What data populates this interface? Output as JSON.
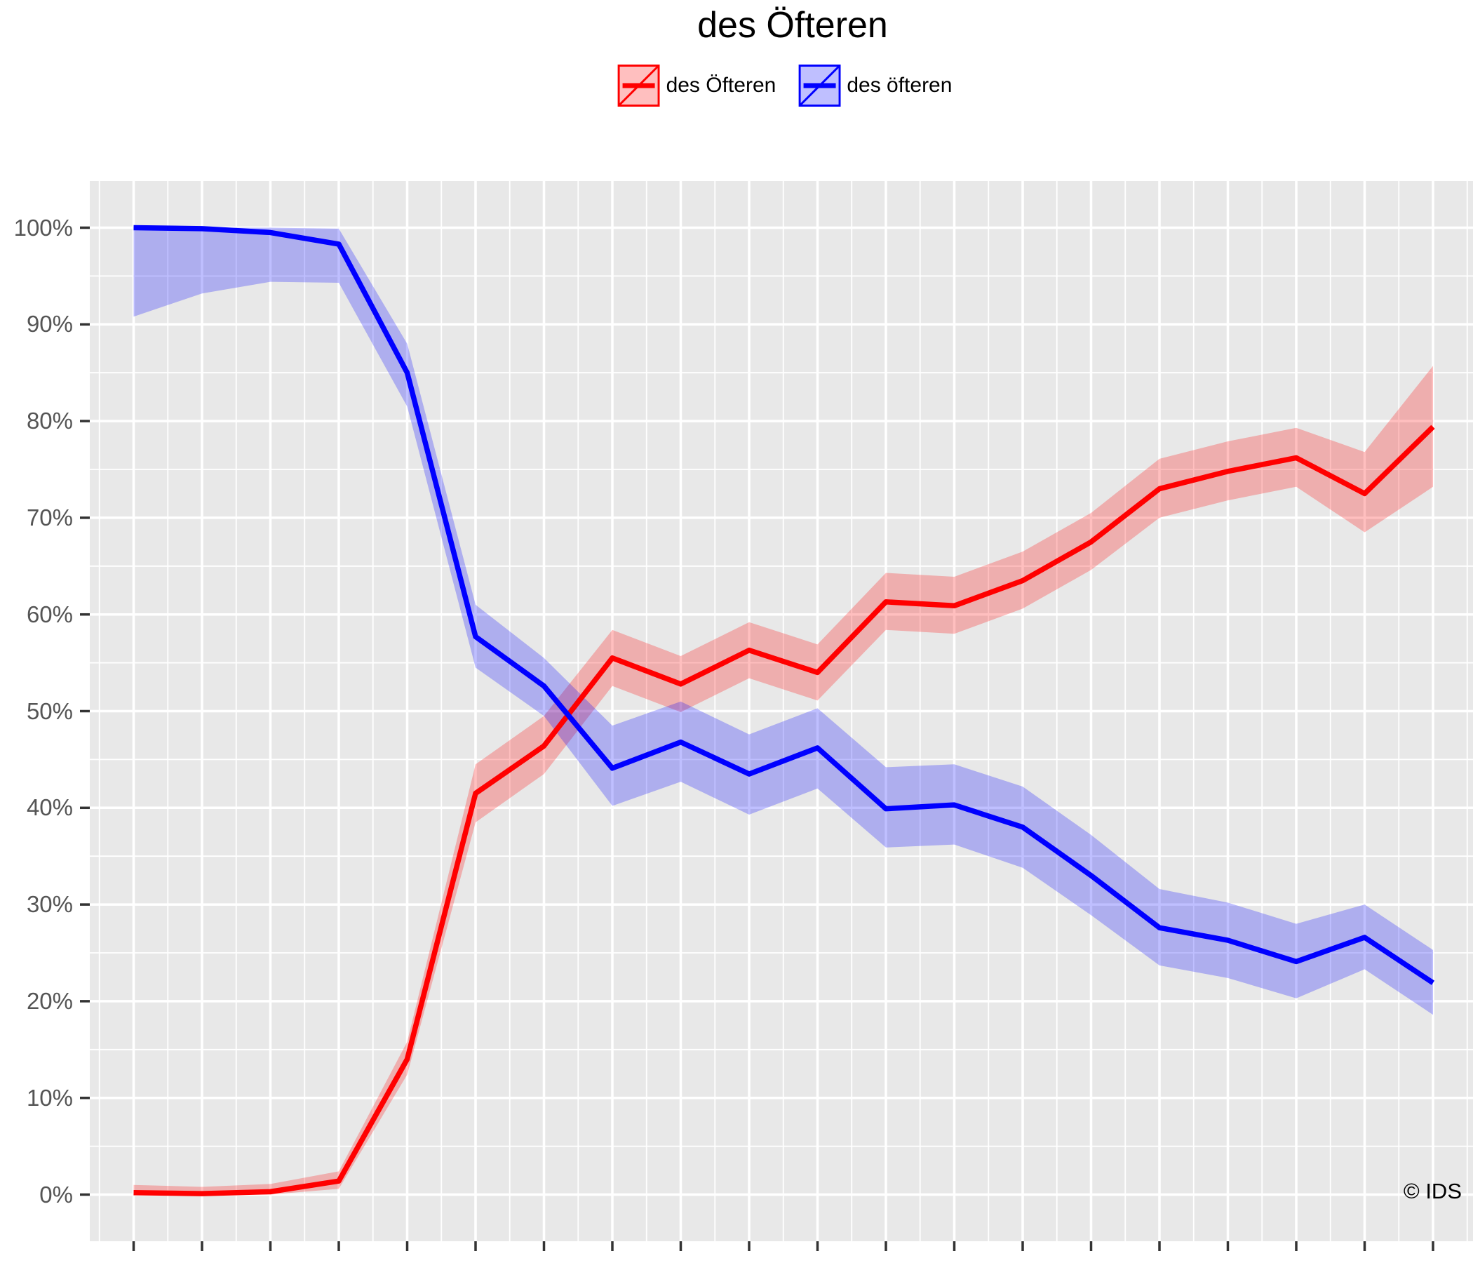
{
  "title": "des Öfteren",
  "watermark": "© IDS",
  "colors": {
    "red": "#FF0000",
    "blue": "#0000FF",
    "red_fill": "rgba(255,0,0,0.25)",
    "blue_fill": "rgba(0,0,255,0.25)",
    "panel_bg": "#E8E8E8",
    "grid": "#FFFFFF",
    "axis_text": "#555555",
    "tick": "#333333"
  },
  "legend": {
    "items": [
      {
        "label": "des Öfteren",
        "color": "#FF0000",
        "fill": "rgba(255,0,0,0.25)"
      },
      {
        "label": "des öfteren",
        "color": "#0000FF",
        "fill": "rgba(0,0,255,0.25)"
      }
    ]
  },
  "y_axis": {
    "tick_labels": [
      "0%",
      "10%",
      "20%",
      "30%",
      "40%",
      "50%",
      "60%",
      "70%",
      "80%",
      "90%",
      "100%"
    ]
  },
  "x_axis": {
    "tick_count": 20,
    "tick_labels": []
  },
  "chart_data": {
    "type": "line",
    "title": "des Öfteren",
    "x": [
      1,
      2,
      3,
      4,
      5,
      6,
      7,
      8,
      9,
      10,
      11,
      12,
      13,
      14,
      15,
      16,
      17,
      18,
      19,
      20
    ],
    "x_tick_labels_visible": false,
    "ylabel": "",
    "y_unit": "%",
    "ylim": [
      0,
      100
    ],
    "grid": true,
    "legend_position": "top",
    "series": [
      {
        "name": "des Öfteren",
        "color": "#FF0000",
        "values": [
          0.2,
          0.1,
          0.3,
          1.4,
          14.0,
          41.5,
          46.4,
          55.5,
          52.8,
          56.3,
          54.0,
          61.3,
          60.9,
          63.5,
          67.5,
          73.0,
          74.8,
          76.2,
          72.5,
          79.4
        ],
        "ribbon_lower": [
          0.0,
          0.0,
          0.0,
          0.6,
          12.4,
          38.5,
          43.5,
          52.6,
          49.9,
          53.4,
          51.1,
          58.4,
          58.0,
          60.6,
          64.6,
          70.0,
          71.8,
          73.2,
          68.5,
          73.2
        ],
        "ribbon_upper": [
          1.0,
          0.8,
          1.1,
          2.4,
          15.8,
          44.5,
          49.5,
          58.4,
          55.7,
          59.2,
          56.9,
          64.3,
          63.9,
          66.5,
          70.5,
          76.1,
          77.9,
          79.3,
          76.8,
          85.7
        ]
      },
      {
        "name": "des öfteren",
        "color": "#0000FF",
        "values": [
          100.0,
          99.9,
          99.5,
          98.3,
          85.0,
          57.7,
          52.6,
          44.1,
          46.8,
          43.5,
          46.2,
          39.9,
          40.3,
          38.0,
          33.0,
          27.6,
          26.3,
          24.1,
          26.6,
          21.9
        ],
        "ribbon_lower": [
          90.8,
          93.2,
          94.4,
          94.3,
          81.5,
          54.5,
          49.5,
          40.2,
          42.7,
          39.3,
          42.0,
          35.9,
          36.2,
          33.8,
          28.9,
          23.7,
          22.4,
          20.3,
          23.3,
          18.6
        ],
        "ribbon_upper": [
          100.0,
          100.0,
          100.0,
          99.9,
          88.0,
          61.0,
          55.5,
          48.5,
          51.0,
          47.6,
          50.3,
          44.2,
          44.5,
          42.2,
          37.2,
          31.6,
          30.2,
          28.0,
          30.0,
          25.3
        ]
      }
    ]
  }
}
